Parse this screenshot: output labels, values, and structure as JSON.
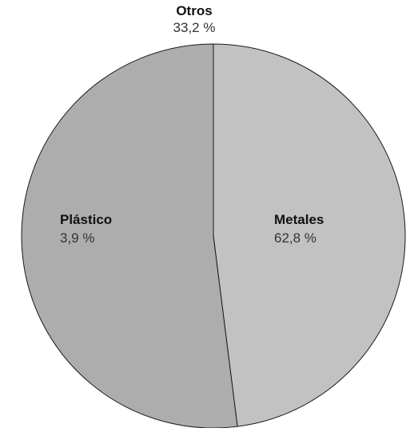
{
  "chart_data": {
    "type": "pie",
    "slices": [
      {
        "label": "Metales",
        "value_label": "62,8 %",
        "value": 62.8,
        "color": "#c2c2c2"
      },
      {
        "label": "Plástico",
        "value_label": "3,9 %",
        "value": 3.9,
        "color": "#adadad"
      },
      {
        "label": "Otros",
        "value_label": "33,2 %",
        "value": 33.2,
        "color": "#adadad"
      }
    ]
  }
}
